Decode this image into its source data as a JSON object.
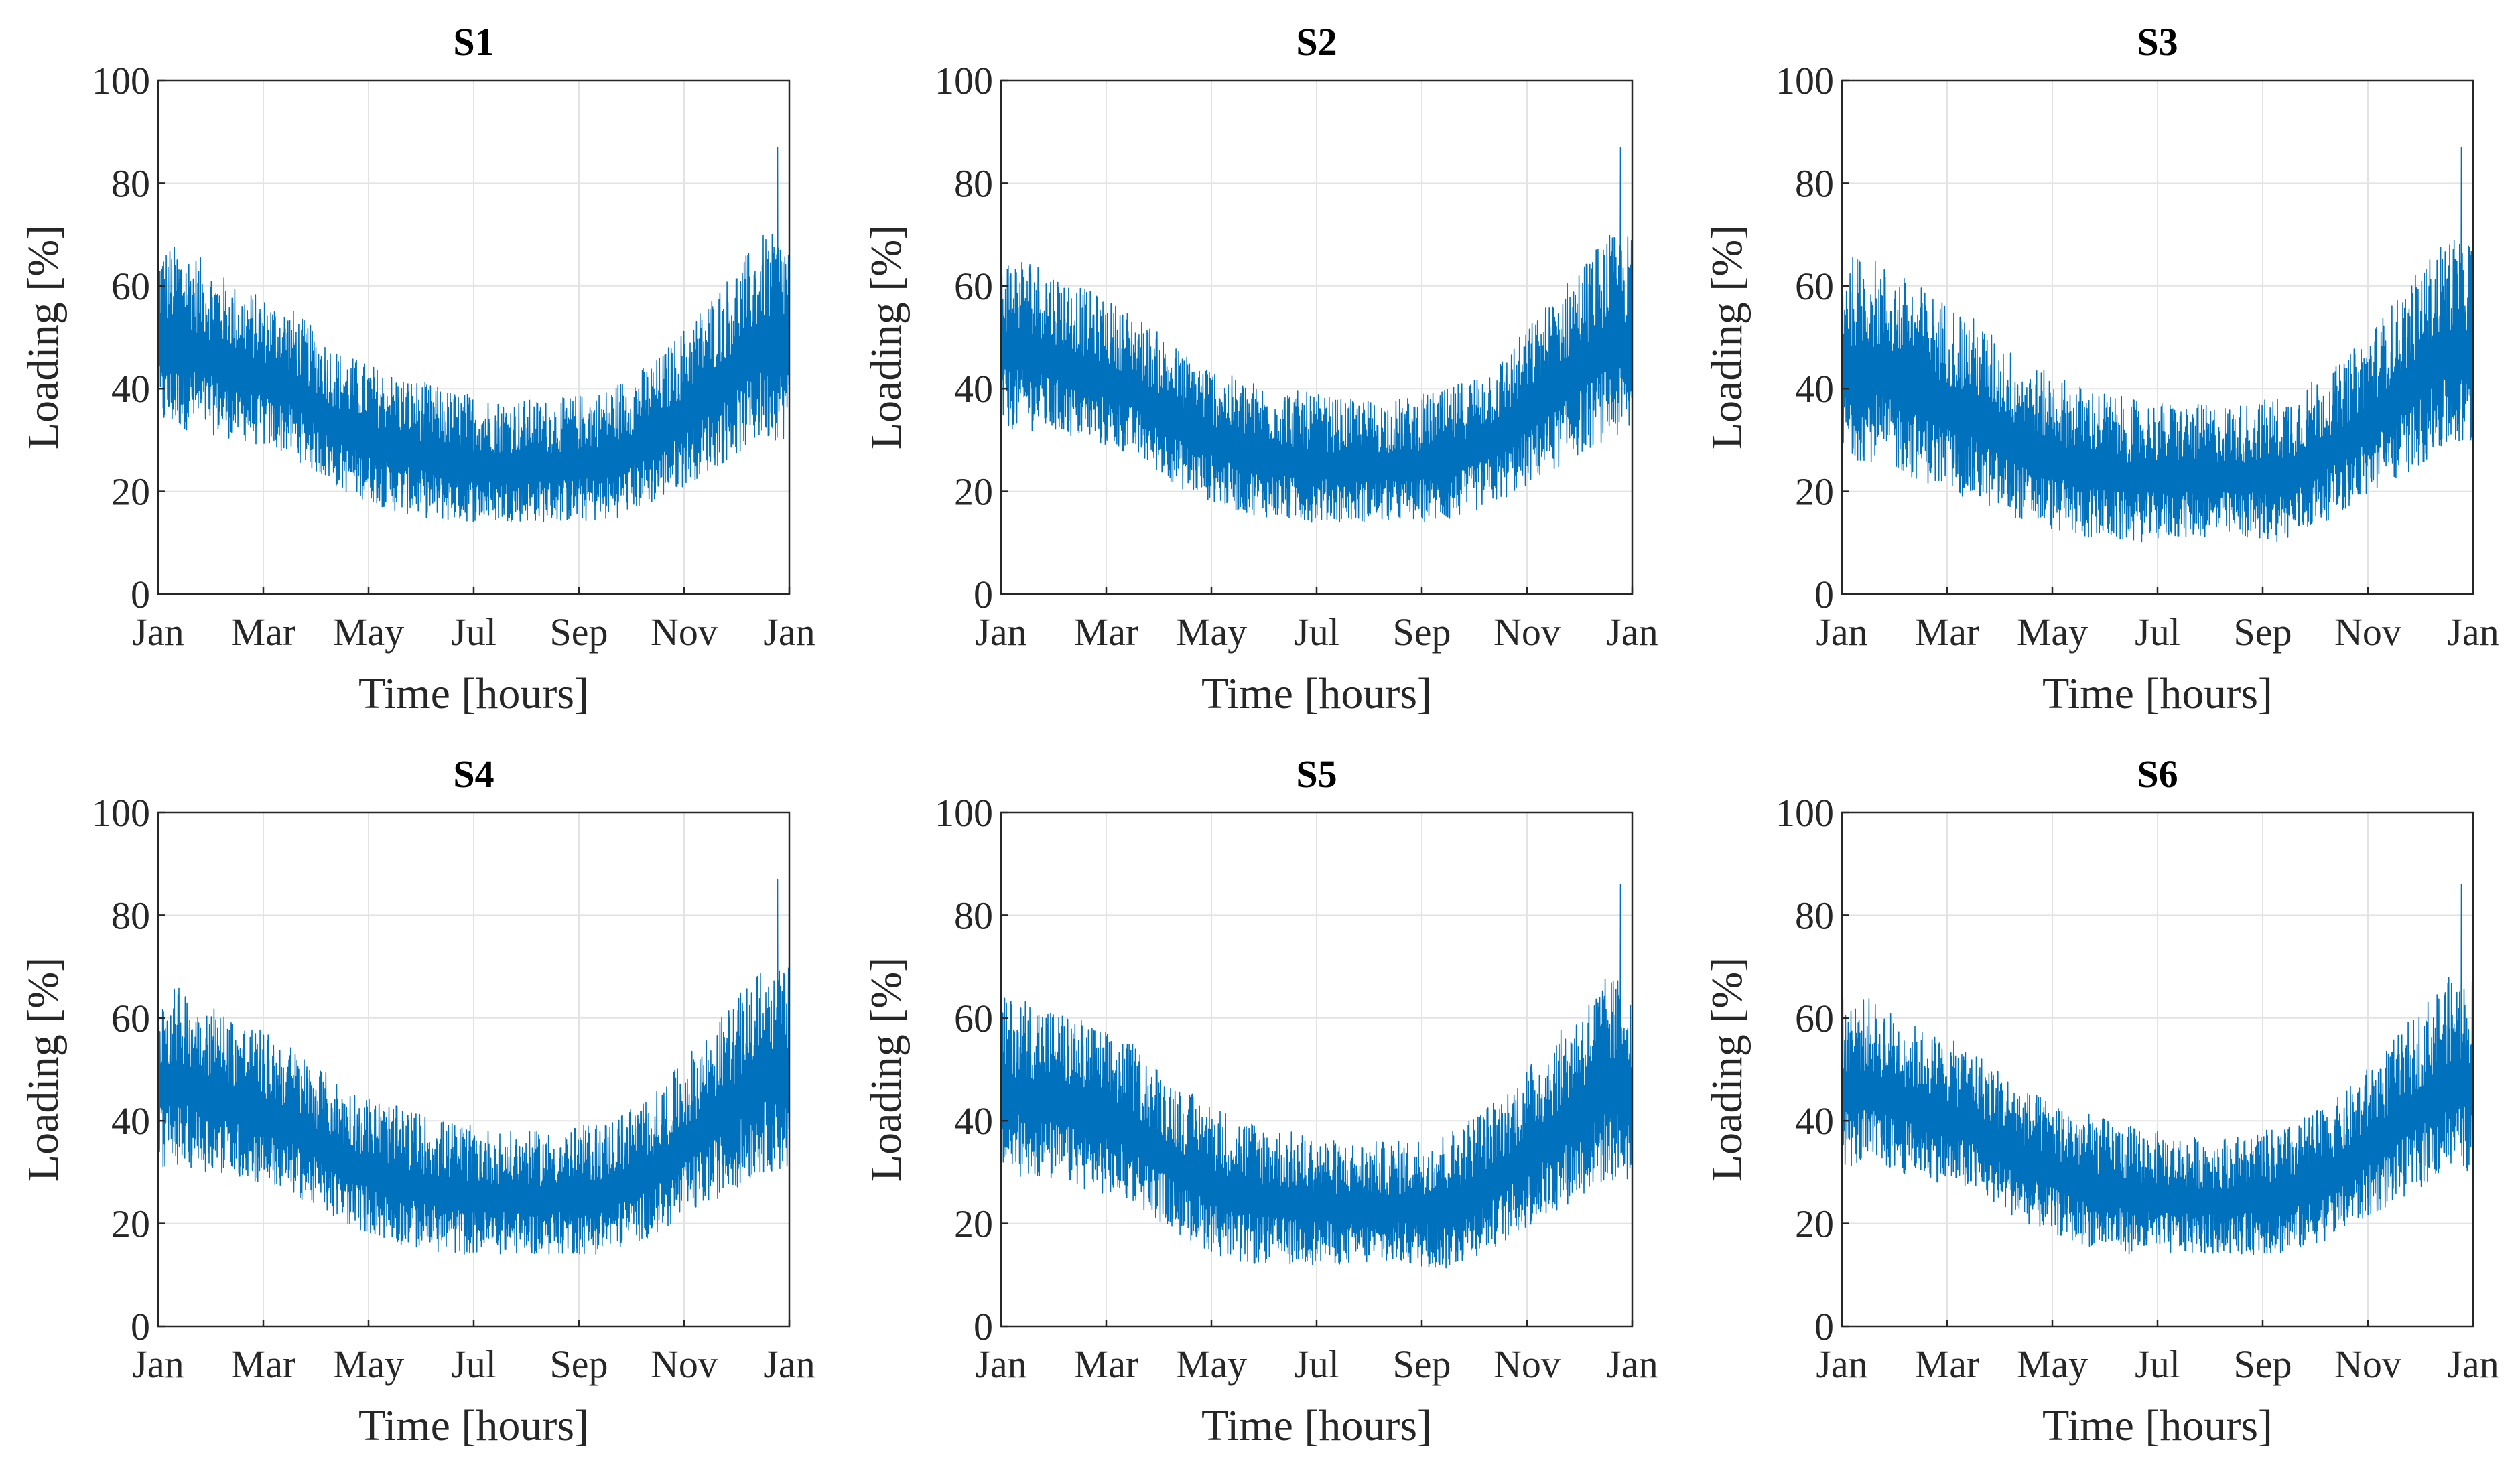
{
  "chart_data": [
    {
      "type": "line",
      "title": "S1",
      "xlabel": "Time [hours]",
      "ylabel": "Loading [%]",
      "ylim": [
        0,
        100
      ],
      "yticks": [
        "0",
        "20",
        "40",
        "60",
        "80",
        "100"
      ],
      "xticks": [
        "Jan",
        "Mar",
        "May",
        "Jul",
        "Sep",
        "Nov",
        "Jan"
      ],
      "grid": true,
      "series": [
        {
          "name": "Loading",
          "color": "#0072BD",
          "hours": 8760,
          "monthly_min": [
            32,
            30,
            27,
            20,
            16,
            14,
            14,
            14,
            14,
            18,
            24,
            30
          ],
          "monthly_max": [
            68,
            60,
            56,
            47,
            43,
            40,
            38,
            38,
            40,
            46,
            58,
            70
          ],
          "peak": {
            "month": "Dec",
            "value": 87
          }
        }
      ]
    },
    {
      "type": "line",
      "title": "S2",
      "xlabel": "Time [hours]",
      "ylabel": "Loading [%]",
      "ylim": [
        0,
        100
      ],
      "yticks": [
        "0",
        "20",
        "40",
        "60",
        "80",
        "100"
      ],
      "xticks": [
        "Jan",
        "Mar",
        "May",
        "Jul",
        "Sep",
        "Nov",
        "Jan"
      ],
      "grid": true,
      "series": [
        {
          "name": "Loading",
          "color": "#0072BD",
          "hours": 8760,
          "monthly_min": [
            32,
            30,
            27,
            20,
            16,
            14,
            14,
            14,
            14,
            18,
            24,
            30
          ],
          "monthly_max": [
            66,
            60,
            55,
            47,
            42,
            40,
            38,
            38,
            40,
            46,
            58,
            70
          ],
          "peak": {
            "month": "Dec",
            "value": 87
          }
        }
      ]
    },
    {
      "type": "line",
      "title": "S3",
      "xlabel": "Time [hours]",
      "ylabel": "Loading [%]",
      "ylim": [
        0,
        100
      ],
      "yticks": [
        "0",
        "20",
        "40",
        "60",
        "80",
        "100"
      ],
      "xticks": [
        "Jan",
        "Mar",
        "May",
        "Jul",
        "Sep",
        "Nov",
        "Jan"
      ],
      "grid": true,
      "series": [
        {
          "name": "Loading",
          "color": "#0072BD",
          "hours": 8760,
          "monthly_min": [
            26,
            22,
            18,
            14,
            11,
            10,
            11,
            11,
            10,
            16,
            22,
            28
          ],
          "monthly_max": [
            66,
            60,
            54,
            45,
            41,
            38,
            37,
            37,
            39,
            45,
            57,
            70
          ],
          "peak": {
            "month": "Dec",
            "value": 87
          }
        }
      ]
    },
    {
      "type": "line",
      "title": "S4",
      "xlabel": "Time [hours]",
      "ylabel": "Loading [%]",
      "ylim": [
        0,
        100
      ],
      "yticks": [
        "0",
        "20",
        "40",
        "60",
        "80",
        "100"
      ],
      "xticks": [
        "Jan",
        "Mar",
        "May",
        "Jul",
        "Sep",
        "Nov",
        "Jan"
      ],
      "grid": true,
      "series": [
        {
          "name": "Loading",
          "color": "#0072BD",
          "hours": 8760,
          "monthly_min": [
            31,
            29,
            26,
            20,
            16,
            14,
            14,
            14,
            14,
            18,
            24,
            30
          ],
          "monthly_max": [
            66,
            60,
            55,
            47,
            43,
            40,
            38,
            38,
            40,
            46,
            58,
            70
          ],
          "peak": {
            "month": "Dec",
            "value": 87
          }
        }
      ]
    },
    {
      "type": "line",
      "title": "S5",
      "xlabel": "Time [hours]",
      "ylabel": "Loading [%]",
      "ylim": [
        0,
        100
      ],
      "yticks": [
        "0",
        "20",
        "40",
        "60",
        "80",
        "100"
      ],
      "xticks": [
        "Jan",
        "Mar",
        "May",
        "Jul",
        "Sep",
        "Nov",
        "Jan"
      ],
      "grid": true,
      "series": [
        {
          "name": "Loading",
          "color": "#0072BD",
          "hours": 8760,
          "monthly_min": [
            29,
            27,
            24,
            17,
            12,
            12,
            12,
            12,
            11,
            16,
            22,
            28
          ],
          "monthly_max": [
            64,
            60,
            55,
            46,
            41,
            38,
            36,
            36,
            38,
            45,
            56,
            68
          ],
          "peak": {
            "month": "Dec",
            "value": 86
          }
        }
      ]
    },
    {
      "type": "line",
      "title": "S6",
      "xlabel": "Time [hours]",
      "ylabel": "Loading [%]",
      "ylim": [
        0,
        100
      ],
      "yticks": [
        "0",
        "20",
        "40",
        "60",
        "80",
        "100"
      ],
      "xticks": [
        "Jan",
        "Mar",
        "May",
        "Jul",
        "Sep",
        "Nov",
        "Jan"
      ],
      "grid": true,
      "series": [
        {
          "name": "Loading",
          "color": "#0072BD",
          "hours": 8760,
          "monthly_min": [
            31,
            29,
            26,
            20,
            16,
            14,
            14,
            14,
            14,
            18,
            24,
            30
          ],
          "monthly_max": [
            64,
            58,
            54,
            46,
            42,
            39,
            37,
            37,
            39,
            45,
            56,
            68
          ],
          "peak": {
            "month": "Dec",
            "value": 86
          }
        }
      ]
    }
  ]
}
